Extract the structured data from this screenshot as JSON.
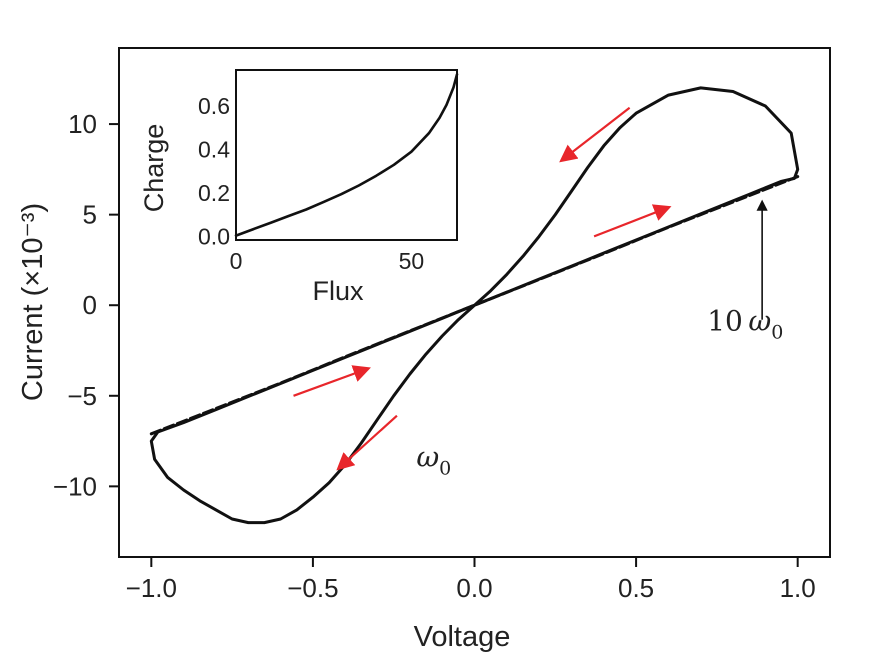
{
  "chart_data": [
    {
      "type": "line",
      "xlabel": "Voltage",
      "ylabel": "Current (×10⁻³)",
      "xlim": [
        -1.1,
        1.1
      ],
      "ylim": [
        -13.9,
        14.2
      ],
      "xticks": [
        {
          "value": -1.0,
          "label": "−1.0"
        },
        {
          "value": -0.5,
          "label": "−0.5"
        },
        {
          "value": 0.0,
          "label": "0.0"
        },
        {
          "value": 0.5,
          "label": "0.5"
        },
        {
          "value": 1.0,
          "label": "1.0"
        }
      ],
      "yticks": [
        {
          "value": -10,
          "label": "−10"
        },
        {
          "value": -5,
          "label": "−5"
        },
        {
          "value": 0,
          "label": "0"
        },
        {
          "value": 5,
          "label": "5"
        },
        {
          "value": 10,
          "label": "10"
        }
      ],
      "series": [
        {
          "style": "solid",
          "color": "#111111",
          "x": [
            0.0,
            0.05,
            0.1,
            0.15,
            0.2,
            0.25,
            0.3,
            0.35,
            0.4,
            0.45,
            0.5,
            0.55,
            0.6,
            0.65,
            0.7,
            0.75,
            0.8,
            0.85,
            0.9,
            0.95,
            0.99,
            1.0,
            0.98,
            0.9,
            0.8,
            0.7,
            0.6,
            0.5,
            0.45,
            0.4,
            0.35,
            0.3,
            0.25,
            0.2,
            0.15,
            0.1,
            0.05,
            0.0,
            -0.05,
            -0.1,
            -0.15,
            -0.2,
            -0.25,
            -0.3,
            -0.35,
            -0.4,
            -0.45,
            -0.5,
            -0.55,
            -0.6,
            -0.65,
            -0.7,
            -0.75,
            -0.8,
            -0.85,
            -0.9,
            -0.95,
            -0.99,
            -1.0,
            -0.98,
            -0.9,
            -0.8,
            -0.7,
            -0.6,
            -0.5,
            -0.45,
            -0.4,
            -0.35,
            -0.3,
            -0.25,
            -0.2,
            -0.15,
            -0.1,
            -0.05,
            0.0
          ],
          "y": [
            0.0,
            0.36,
            0.72,
            1.08,
            1.44,
            1.8,
            2.16,
            2.52,
            2.88,
            3.24,
            3.6,
            3.96,
            4.32,
            4.68,
            5.04,
            5.4,
            5.76,
            6.12,
            6.48,
            6.84,
            7.0,
            7.5,
            9.5,
            11.0,
            11.8,
            12.0,
            11.6,
            10.6,
            9.8,
            8.8,
            7.6,
            6.3,
            5.0,
            3.8,
            2.7,
            1.7,
            0.8,
            0.0,
            -0.8,
            -1.7,
            -2.7,
            -3.8,
            -5.0,
            -6.3,
            -7.6,
            -8.8,
            -9.8,
            -10.6,
            -11.3,
            -11.8,
            -12.0,
            -12.0,
            -11.8,
            -11.3,
            -10.8,
            -10.2,
            -9.5,
            -8.5,
            -7.5,
            -7.0,
            -6.48,
            -5.76,
            -5.04,
            -4.32,
            -3.6,
            -3.24,
            -2.88,
            -2.52,
            -2.16,
            -1.8,
            -1.44,
            -1.08,
            -0.72,
            -0.36,
            0.0
          ]
        },
        {
          "style": "dashed",
          "color": "#111111",
          "x": [
            -1.0,
            -0.8,
            -0.6,
            -0.4,
            -0.2,
            0.0,
            0.2,
            0.4,
            0.6,
            0.8,
            1.0
          ],
          "y": [
            -7.1,
            -5.7,
            -4.3,
            -2.85,
            -1.42,
            0.0,
            1.42,
            2.85,
            4.3,
            5.7,
            7.1
          ]
        }
      ],
      "annotations": [
        {
          "text": "10",
          "symbol": "ω",
          "subscript": "0",
          "x": 0.72,
          "y": -1.4
        },
        {
          "text": "",
          "symbol": "ω",
          "subscript": "0",
          "x": -0.18,
          "y": -8.9
        }
      ],
      "pointer_arrow": {
        "color": "#111111",
        "from": {
          "x": 0.89,
          "y": -0.8
        },
        "to": {
          "x": 0.89,
          "y": 5.7
        }
      },
      "direction_arrows": {
        "color": "#e8262b",
        "items": [
          {
            "from": {
              "x": 0.48,
              "y": 10.9
            },
            "to": {
              "x": 0.27,
              "y": 8.0
            }
          },
          {
            "from": {
              "x": 0.37,
              "y": 3.8
            },
            "to": {
              "x": 0.6,
              "y": 5.4
            }
          },
          {
            "from": {
              "x": -0.56,
              "y": -5.0
            },
            "to": {
              "x": -0.33,
              "y": -3.5
            }
          },
          {
            "from": {
              "x": -0.24,
              "y": -6.1
            },
            "to": {
              "x": -0.42,
              "y": -9.0
            }
          }
        ]
      }
    },
    {
      "type": "line",
      "inset": true,
      "xlabel": "Flux",
      "ylabel": "Charge",
      "xlim": [
        0,
        63
      ],
      "ylim": [
        -0.02,
        0.76
      ],
      "xticks": [
        {
          "value": 0,
          "label": "0"
        },
        {
          "value": 50,
          "label": "50"
        }
      ],
      "yticks": [
        {
          "value": 0.0,
          "label": "0.0"
        },
        {
          "value": 0.2,
          "label": "0.2"
        },
        {
          "value": 0.4,
          "label": "0.4"
        },
        {
          "value": 0.6,
          "label": "0.6"
        }
      ],
      "series": [
        {
          "style": "solid",
          "color": "#111111",
          "x": [
            0,
            5,
            10,
            15,
            20,
            25,
            30,
            35,
            40,
            45,
            50,
            55,
            58,
            60,
            62,
            63
          ],
          "y": [
            0.0,
            0.03,
            0.06,
            0.09,
            0.12,
            0.155,
            0.19,
            0.23,
            0.275,
            0.325,
            0.385,
            0.47,
            0.54,
            0.6,
            0.68,
            0.74
          ]
        }
      ]
    }
  ]
}
